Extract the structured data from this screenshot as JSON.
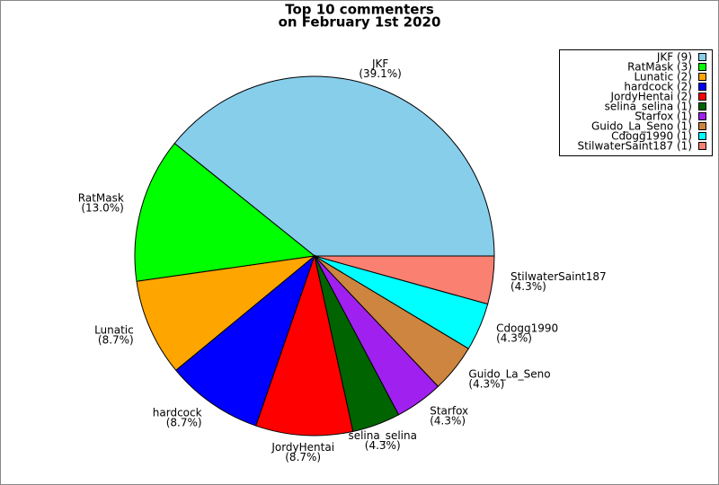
{
  "chart_data": {
    "type": "pie",
    "title": "Top 10 commenters",
    "subtitle": "on February 1st 2020",
    "categories": [
      "JKF",
      "RatMask",
      "Lunatic",
      "hardcock",
      "JordyHentai",
      "selina_selina",
      "Starfox",
      "Guido_La_Seno",
      "Cdogg1990",
      "StilwaterSaint187"
    ],
    "values": [
      39.1,
      13.0,
      8.7,
      8.7,
      8.7,
      4.3,
      4.3,
      4.3,
      4.3,
      4.3
    ],
    "value_labels": [
      "(39.1%)",
      "(13.0%)",
      "(8.7%)",
      "(8.7%)",
      "(8.7%)",
      "(4.3%)",
      "(4.3%)",
      "(4.3%)",
      "(4.3%)",
      "(4.3%)"
    ],
    "legend_labels": [
      "JKF (9)",
      "RatMask (3)",
      "Lunatic (2)",
      "hardcock (2)",
      "JordyHentai (2)",
      "selina_selina (1)",
      "Starfox (1)",
      "Guido_La_Seno (1)",
      "Cdogg1990 (1)",
      "StilwaterSaint187 (1)"
    ],
    "colors": [
      "#87ceeb",
      "#00ff00",
      "#ffa500",
      "#0000ff",
      "#ff0000",
      "#006400",
      "#a020f0",
      "#cd853f",
      "#00ffff",
      "#fa8072"
    ],
    "legend": "upper right"
  }
}
